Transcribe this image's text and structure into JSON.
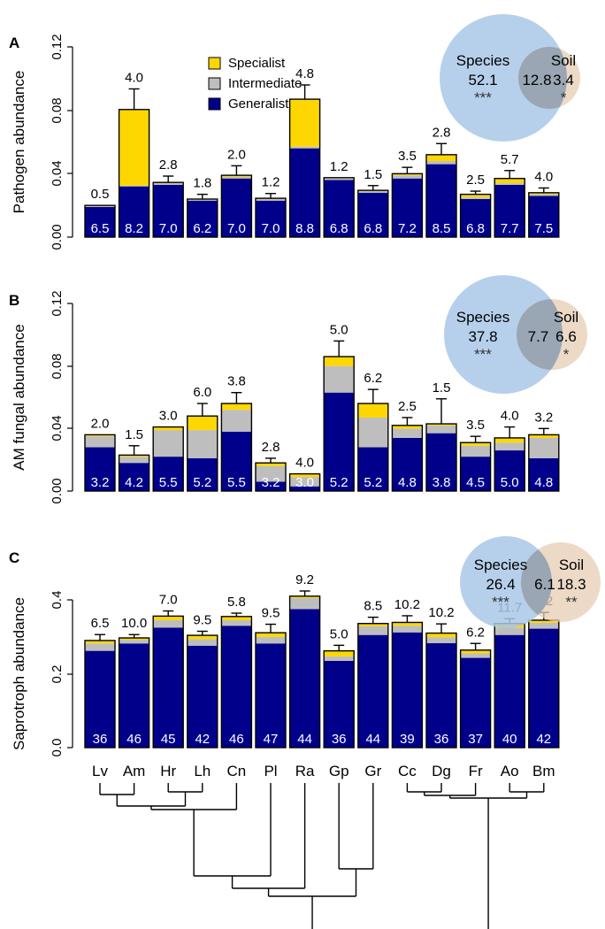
{
  "colors": {
    "specialist": "#FFD700",
    "intermediate": "#BEBEBE",
    "generalist": "#00008B",
    "species_circle": "#A9C8E8",
    "soil_circle": "#E6CDB4"
  },
  "species": [
    "Lv",
    "Am",
    "Hr",
    "Lh",
    "Cn",
    "Pl",
    "Ra",
    "Gp",
    "Gr",
    "Cc",
    "Dg",
    "Fr",
    "Ao",
    "Bm"
  ],
  "legend": {
    "items": [
      {
        "label": "Specialist",
        "color": "#FFD700"
      },
      {
        "label": "Intermediate",
        "color": "#BEBEBE"
      },
      {
        "label": "Generalist",
        "color": "#00008B"
      }
    ]
  },
  "chart_data": [
    {
      "panel": "A",
      "type": "bar",
      "stacked": true,
      "ylabel": "Pathogen abundance",
      "ylim": [
        0,
        0.12
      ],
      "yticks": [
        "0.00",
        "0.04",
        "0.08",
        "0.12"
      ],
      "categories": [
        "Lv",
        "Am",
        "Hr",
        "Lh",
        "Cn",
        "Pl",
        "Ra",
        "Gp",
        "Gr",
        "Cc",
        "Dg",
        "Fr",
        "Ao",
        "Bm"
      ],
      "series": [
        {
          "name": "Generalist",
          "values": [
            0.019,
            0.032,
            0.033,
            0.023,
            0.037,
            0.023,
            0.056,
            0.036,
            0.028,
            0.037,
            0.046,
            0.024,
            0.033,
            0.026
          ]
        },
        {
          "name": "Intermediate",
          "values": [
            0.0005,
            0.0005,
            0.001,
            0.0005,
            0.001,
            0.001,
            0.001,
            0.001,
            0.001,
            0.002,
            0.002,
            0.001,
            0.001,
            0.001
          ]
        },
        {
          "name": "Specialist",
          "values": [
            0.0005,
            0.048,
            0.0005,
            0.0005,
            0.001,
            0.0005,
            0.03,
            0.0005,
            0.0005,
            0.001,
            0.004,
            0.002,
            0.003,
            0.001
          ]
        }
      ],
      "errors": [
        0.0,
        0.013,
        0.004,
        0.003,
        0.006,
        0.003,
        0.009,
        0.0,
        0.003,
        0.004,
        0.007,
        0.002,
        0.005,
        0.003
      ],
      "top_labels": [
        "0.5",
        "4.0",
        "2.8",
        "1.8",
        "2.0",
        "1.2",
        "4.8",
        "1.2",
        "1.5",
        "3.5",
        "2.8",
        "2.5",
        "5.7",
        "4.0"
      ],
      "bottom_labels": [
        "6.5",
        "8.2",
        "7.0",
        "6.2",
        "7.0",
        "7.0",
        "8.8",
        "6.8",
        "6.8",
        "7.2",
        "8.5",
        "6.8",
        "7.7",
        "7.5"
      ],
      "venn": {
        "left_label": "Species",
        "left_value": "52.1",
        "left_sig": "***",
        "overlap": "12.8",
        "right_label": "Soil",
        "right_value": "3.4",
        "right_sig": "*"
      }
    },
    {
      "panel": "B",
      "type": "bar",
      "stacked": true,
      "ylabel": "AM fungal abundance",
      "ylim": [
        0,
        0.12
      ],
      "yticks": [
        "0.00",
        "0.04",
        "0.08",
        "0.12"
      ],
      "categories": [
        "Lv",
        "Am",
        "Hr",
        "Lh",
        "Cn",
        "Pl",
        "Ra",
        "Gp",
        "Gr",
        "Cc",
        "Dg",
        "Fr",
        "Ao",
        "Bm"
      ],
      "series": [
        {
          "name": "Generalist",
          "values": [
            0.028,
            0.018,
            0.022,
            0.021,
            0.038,
            0.006,
            0.003,
            0.063,
            0.028,
            0.034,
            0.037,
            0.022,
            0.026,
            0.021
          ]
        },
        {
          "name": "Intermediate",
          "values": [
            0.007,
            0.004,
            0.017,
            0.018,
            0.014,
            0.01,
            0.006,
            0.017,
            0.019,
            0.006,
            0.005,
            0.007,
            0.005,
            0.013
          ]
        },
        {
          "name": "Specialist",
          "values": [
            0.001,
            0.001,
            0.002,
            0.009,
            0.004,
            0.002,
            0.002,
            0.006,
            0.009,
            0.002,
            0.001,
            0.002,
            0.003,
            0.002
          ]
        }
      ],
      "errors": [
        0.0,
        0.006,
        0.0,
        0.008,
        0.007,
        0.003,
        0.0,
        0.01,
        0.009,
        0.005,
        0.016,
        0.004,
        0.007,
        0.004
      ],
      "top_labels": [
        "2.0",
        "1.5",
        "3.0",
        "6.0",
        "3.8",
        "2.8",
        "4.0",
        "5.0",
        "6.2",
        "2.5",
        "1.5",
        "3.5",
        "4.0",
        "3.2"
      ],
      "bottom_labels": [
        "3.2",
        "4.2",
        "5.5",
        "5.2",
        "5.5",
        "3.2",
        "3.0",
        "5.2",
        "5.2",
        "4.8",
        "3.8",
        "4.5",
        "5.0",
        "4.8"
      ],
      "venn": {
        "left_label": "Species",
        "left_value": "37.8",
        "left_sig": "***",
        "overlap": "7.7",
        "right_label": "Soil",
        "right_value": "6.6",
        "right_sig": "*"
      }
    },
    {
      "panel": "C",
      "type": "bar",
      "stacked": true,
      "ylabel": "Saprotroph abundance",
      "ylim": [
        0,
        0.45
      ],
      "yticks": [
        "0.0",
        "0.2",
        "0.4"
      ],
      "categories": [
        "Lv",
        "Am",
        "Hr",
        "Lh",
        "Cn",
        "Pl",
        "Ra",
        "Gp",
        "Gr",
        "Cc",
        "Dg",
        "Fr",
        "Ao",
        "Bm"
      ],
      "series": [
        {
          "name": "Generalist",
          "values": [
            0.262,
            0.282,
            0.325,
            0.276,
            0.33,
            0.282,
            0.375,
            0.235,
            0.305,
            0.312,
            0.283,
            0.243,
            0.305,
            0.322
          ]
        },
        {
          "name": "Intermediate",
          "values": [
            0.02,
            0.01,
            0.02,
            0.018,
            0.015,
            0.018,
            0.03,
            0.012,
            0.024,
            0.018,
            0.016,
            0.012,
            0.02,
            0.016
          ]
        },
        {
          "name": "Specialist",
          "values": [
            0.008,
            0.005,
            0.011,
            0.01,
            0.01,
            0.011,
            0.005,
            0.015,
            0.007,
            0.009,
            0.011,
            0.009,
            0.011,
            0.007
          ]
        }
      ],
      "errors": [
        0.016,
        0.009,
        0.014,
        0.011,
        0.009,
        0.023,
        0.014,
        0.015,
        0.017,
        0.018,
        0.025,
        0.018,
        0.013,
        0.021
      ],
      "top_labels": [
        "6.5",
        "10.0",
        "7.0",
        "9.5",
        "5.8",
        "9.5",
        "9.2",
        "5.0",
        "8.5",
        "10.2",
        "10.2",
        "6.2",
        "11.7",
        "7.2"
      ],
      "bottom_labels": [
        "36",
        "46",
        "45",
        "42",
        "46",
        "47",
        "44",
        "36",
        "44",
        "39",
        "36",
        "37",
        "40",
        "42"
      ],
      "venn": {
        "left_label": "Species",
        "left_value": "26.4",
        "left_sig": "***",
        "overlap": "6.1",
        "right_label": "Soil",
        "right_value": "18.3",
        "right_sig": "**"
      }
    }
  ]
}
